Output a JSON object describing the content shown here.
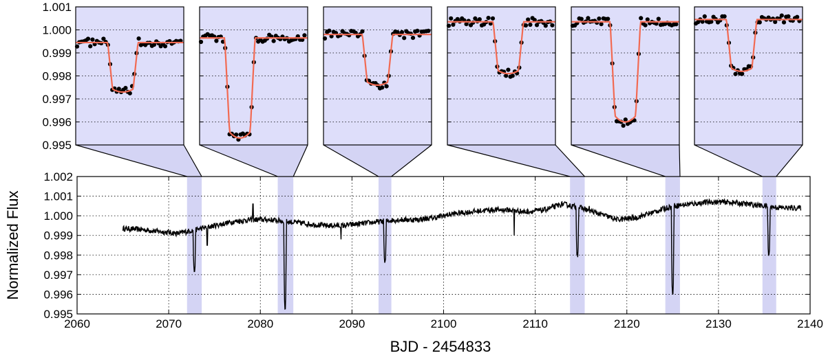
{
  "chart_data": {
    "type": "line",
    "xlabel": "BJD - 2454833",
    "ylabel": "Normalized Flux",
    "main": {
      "xlim": [
        2060,
        2140
      ],
      "ylim": [
        0.995,
        1.002
      ],
      "xticks": [
        2060,
        2070,
        2080,
        2090,
        2100,
        2110,
        2120,
        2130,
        2140
      ],
      "yticks": [
        0.995,
        0.996,
        0.997,
        0.998,
        0.999,
        1.0,
        1.001,
        1.002
      ],
      "ytick_labels": [
        "0.995",
        "0.996",
        "0.997",
        "0.998",
        "0.999",
        "1.000",
        "1.001",
        "1.002"
      ],
      "grid": true,
      "light_curve_baseline": {
        "x": [
          2065,
          2067,
          2069,
          2071,
          2073,
          2075,
          2077,
          2079,
          2081,
          2083,
          2085,
          2087,
          2089,
          2091,
          2093,
          2095,
          2097,
          2099,
          2101,
          2103,
          2105,
          2107,
          2109,
          2111,
          2113,
          2115,
          2117,
          2119,
          2121,
          2123,
          2125,
          2127,
          2129,
          2131,
          2133,
          2135,
          2137,
          2139
        ],
        "y": [
          0.99935,
          0.9993,
          0.9992,
          0.9991,
          0.9993,
          0.9995,
          0.9997,
          0.9998,
          0.9998,
          0.9997,
          0.9996,
          0.9995,
          0.9995,
          0.9996,
          0.9997,
          0.9998,
          0.9998,
          0.9999,
          1.0001,
          1.0002,
          1.0003,
          1.0003,
          1.0002,
          1.0003,
          1.0006,
          1.0004,
          1.0001,
          0.9998,
          0.9999,
          1.0002,
          1.0005,
          1.0006,
          1.0007,
          1.0007,
          1.0006,
          1.0005,
          1.0004,
          1.0004
        ]
      },
      "transits": [
        {
          "t0": 2072.8,
          "depth_min": 0.9972,
          "band": [
            2072.0,
            2073.6
          ]
        },
        {
          "t0": 2082.7,
          "depth_min": 0.9953,
          "band": [
            2081.9,
            2083.6
          ]
        },
        {
          "t0": 2093.6,
          "depth_min": 0.9976,
          "band": [
            2092.9,
            2094.3
          ]
        },
        {
          "t0": 2114.6,
          "depth_min": 0.998,
          "band": [
            2113.8,
            2115.4
          ]
        },
        {
          "t0": 2125.0,
          "depth_min": 0.996,
          "band": [
            2124.2,
            2125.8
          ]
        },
        {
          "t0": 2135.5,
          "depth_min": 0.998,
          "band": [
            2134.8,
            2136.3
          ]
        }
      ],
      "spikes": [
        {
          "x": 2074.2,
          "y": 0.9985
        },
        {
          "x": 2079.2,
          "y": 1.0006
        },
        {
          "x": 2088.8,
          "y": 0.9988
        },
        {
          "x": 2107.7,
          "y": 0.999
        },
        {
          "x": 2115.9,
          "y": 1.0005
        }
      ]
    },
    "insets": {
      "ylim": [
        0.995,
        1.001
      ],
      "yticks": [
        0.995,
        0.996,
        0.997,
        0.998,
        0.999,
        1.0,
        1.001
      ],
      "ytick_labels": [
        "0.995",
        "0.996",
        "0.997",
        "0.998",
        "0.999",
        "1.000",
        "1.001"
      ],
      "panels": [
        {
          "baseline": 0.99945,
          "depth": 0.9973
        },
        {
          "baseline": 0.99965,
          "depth": 0.9953
        },
        {
          "baseline": 0.9998,
          "depth": 0.9976
        },
        {
          "baseline": 1.00035,
          "depth": 0.9981
        },
        {
          "baseline": 1.00035,
          "depth": 0.996
        },
        {
          "baseline": 1.00045,
          "depth": 0.9982
        }
      ]
    },
    "colors": {
      "band": "#d4d4f4",
      "inset_bg": "#dedefa",
      "model": "#f26a52",
      "data": "#000000"
    }
  }
}
